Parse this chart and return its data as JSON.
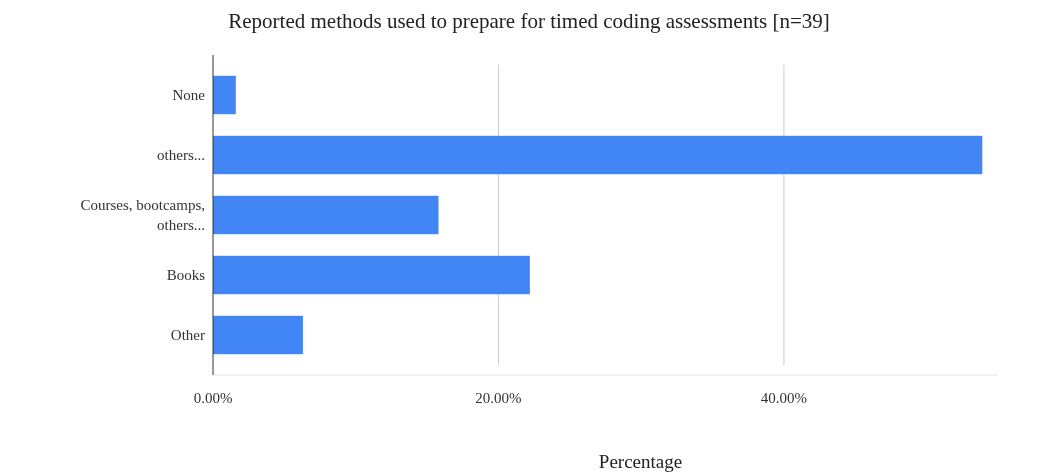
{
  "chart_data": {
    "type": "bar",
    "orientation": "horizontal",
    "title": "Reported methods used to prepare for timed coding assessments [n=39]",
    "xlabel": "Percentage",
    "categories": [
      "None",
      "others...",
      "Courses, bootcamps, others...",
      "Books",
      "Other"
    ],
    "values": [
      1.6,
      53.9,
      15.8,
      22.2,
      6.3
    ],
    "color": "#4285f4",
    "xlim": [
      0,
      55
    ],
    "xticks": [
      {
        "value": 0,
        "label": "0.00%"
      },
      {
        "value": 20,
        "label": "20.00%"
      },
      {
        "value": 40,
        "label": "40.00%"
      }
    ],
    "grid": "x"
  }
}
